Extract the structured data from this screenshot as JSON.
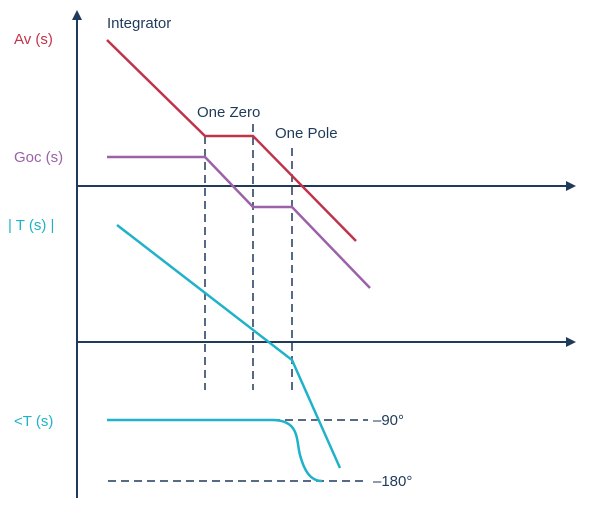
{
  "colors": {
    "axis": "#1f3a5a",
    "av": "#c0344b",
    "goc": "#9b62a8",
    "t": "#1fb2c9",
    "dashed": "#1f3a5a"
  },
  "labels": {
    "integrator": "Integrator",
    "one_zero": "One Zero",
    "one_pole": "One Pole",
    "av": "Av (s)",
    "goc": "Goc (s)",
    "t_mag": "| T (s) |",
    "t_phase": "<T (s)",
    "minus90": "–90°",
    "minus180": "–180°"
  }
}
